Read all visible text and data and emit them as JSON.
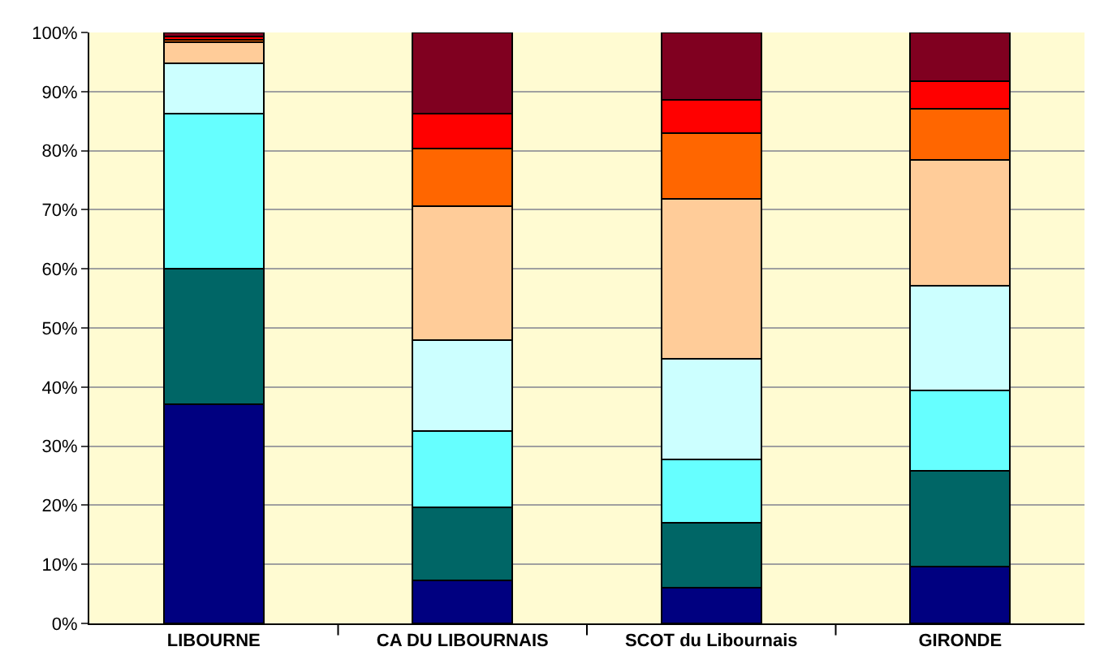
{
  "chart_data": {
    "type": "bar",
    "stacked": true,
    "categories": [
      "LIBOURNE",
      "CA DU LIBOURNAIS",
      "SCOT du Libournais",
      "GIRONDE"
    ],
    "series": [
      {
        "color": "#000080",
        "values": [
          37.1,
          7.3,
          6.0,
          9.6
        ]
      },
      {
        "color": "#006666",
        "values": [
          22.9,
          12.3,
          11.0,
          16.2
        ]
      },
      {
        "color": "#66ffff",
        "values": [
          26.2,
          12.9,
          10.7,
          13.6
        ]
      },
      {
        "color": "#ccffff",
        "values": [
          8.6,
          15.5,
          17.1,
          17.8
        ]
      },
      {
        "color": "#ffcc99",
        "values": [
          3.5,
          22.6,
          27.1,
          21.2
        ]
      },
      {
        "color": "#ff6600",
        "values": [
          0.5,
          9.8,
          11.0,
          8.7
        ]
      },
      {
        "color": "#ff0000",
        "values": [
          0.5,
          5.8,
          5.7,
          4.6
        ]
      },
      {
        "color": "#800020",
        "values": [
          0.7,
          13.8,
          11.4,
          8.3
        ]
      }
    ],
    "ylim": [
      0,
      100
    ],
    "yticks": [
      {
        "value": 0,
        "label": "0%"
      },
      {
        "value": 10,
        "label": "10%"
      },
      {
        "value": 20,
        "label": "20%"
      },
      {
        "value": 30,
        "label": "30%"
      },
      {
        "value": 40,
        "label": "40%"
      },
      {
        "value": 50,
        "label": "50%"
      },
      {
        "value": 60,
        "label": "60%"
      },
      {
        "value": 70,
        "label": "70%"
      },
      {
        "value": 80,
        "label": "80%"
      },
      {
        "value": 90,
        "label": "90%"
      },
      {
        "value": 100,
        "label": "100%"
      }
    ],
    "grid": "y"
  }
}
